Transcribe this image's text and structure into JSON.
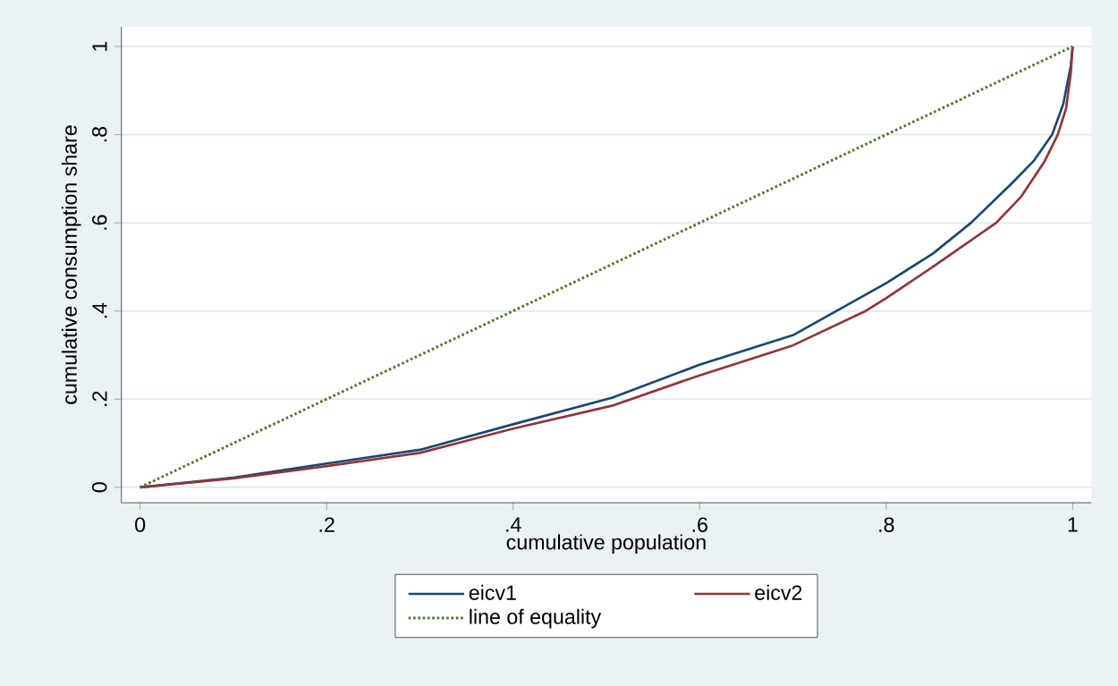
{
  "chart_data": {
    "type": "line",
    "xlabel": "cumulative population",
    "ylabel": "cumulative consumption share",
    "xlim": [
      -0.02,
      1.02
    ],
    "ylim": [
      -0.035,
      1.045
    ],
    "xticks": [
      0,
      {
        "value": 0.2,
        "label": ".2"
      },
      {
        "value": 0.4,
        "label": ".4"
      },
      {
        "value": 0.6,
        "label": ".6"
      },
      {
        "value": 0.8,
        "label": ".8"
      },
      1
    ],
    "yticks": [
      0,
      {
        "value": 0.2,
        "label": ".2"
      },
      {
        "value": 0.4,
        "label": ".4"
      },
      {
        "value": 0.6,
        "label": ".6"
      },
      {
        "value": 0.8,
        "label": ".8"
      },
      1
    ],
    "grid": "y",
    "legend": "bottom",
    "series": [
      {
        "name": "eicv1",
        "color": "#1a476f",
        "line_style": "solid",
        "x": [
          0,
          0.1,
          0.2,
          0.3,
          0.4,
          0.506,
          0.6,
          0.7,
          0.8,
          0.85,
          0.891,
          0.935,
          0.958,
          0.978,
          0.99,
          0.998,
          1
        ],
        "values": [
          0,
          0.022,
          0.054,
          0.085,
          0.143,
          0.203,
          0.278,
          0.345,
          0.463,
          0.53,
          0.6,
          0.69,
          0.74,
          0.8,
          0.87,
          0.956,
          1
        ]
      },
      {
        "name": "eicv2",
        "color": "#90353b",
        "line_style": "solid",
        "x": [
          0,
          0.1,
          0.2,
          0.3,
          0.4,
          0.506,
          0.6,
          0.7,
          0.778,
          0.8,
          0.85,
          0.918,
          0.945,
          0.97,
          0.984,
          0.993,
          0.998,
          1
        ],
        "values": [
          0,
          0.02,
          0.048,
          0.078,
          0.133,
          0.185,
          0.254,
          0.322,
          0.4,
          0.429,
          0.5,
          0.6,
          0.66,
          0.74,
          0.8,
          0.86,
          0.94,
          1
        ]
      },
      {
        "name": "line of equality",
        "color": "#55752f",
        "line_style": "dotted",
        "x": [
          0,
          1
        ],
        "values": [
          0,
          1
        ]
      }
    ]
  }
}
